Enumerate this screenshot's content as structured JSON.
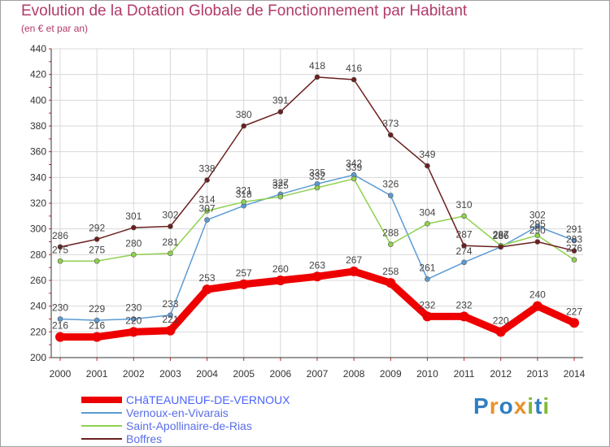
{
  "header": {
    "title": "Evolution de la Dotation Globale de Fonctionnement par Habitant",
    "subtitle": "(en € et par an)"
  },
  "chart_data": {
    "type": "line",
    "title": "Evolution de la Dotation Globale de Fonctionnement par Habitant",
    "subtitle": "(en € et par an)",
    "xlabel": "",
    "ylabel": "",
    "x": [
      "2000",
      "2001",
      "2002",
      "2003",
      "2004",
      "2005",
      "2006",
      "2007",
      "2008",
      "2009",
      "2010",
      "2011",
      "2012",
      "2013",
      "2014"
    ],
    "ylim": [
      200,
      440
    ],
    "yticks": [
      200,
      220,
      240,
      260,
      280,
      300,
      320,
      340,
      360,
      380,
      400,
      420,
      440
    ],
    "grid": true,
    "series": [
      {
        "name": "CHâTEAUNEUF-DE-VERNOUX",
        "color": "#ee0000",
        "emphasis": true,
        "values": [
          216,
          216,
          220,
          221,
          253,
          257,
          260,
          263,
          267,
          258,
          232,
          232,
          220,
          240,
          227
        ]
      },
      {
        "name": "Vernoux-en-Vivarais",
        "color": "#5b9bd5",
        "values": [
          230,
          229,
          230,
          233,
          307,
          318,
          327,
          335,
          342,
          326,
          261,
          274,
          286,
          302,
          291
        ]
      },
      {
        "name": "Saint-Apollinaire-de-Rias",
        "color": "#8fd14f",
        "values": [
          275,
          275,
          280,
          281,
          314,
          321,
          325,
          332,
          339,
          288,
          304,
          310,
          287,
          295,
          276
        ]
      },
      {
        "name": "Boffres",
        "color": "#6b1f1f",
        "values": [
          286,
          292,
          301,
          302,
          338,
          380,
          391,
          418,
          416,
          373,
          349,
          287,
          286,
          290,
          283
        ]
      }
    ]
  },
  "logo": {
    "letters": [
      "P",
      "r",
      "o",
      "x",
      "i",
      "t",
      "i"
    ]
  }
}
